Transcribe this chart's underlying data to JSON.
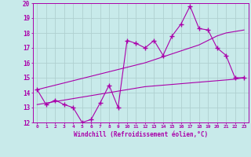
{
  "xlabel": "Windchill (Refroidissement éolien,°C)",
  "xlim": [
    -0.5,
    23.5
  ],
  "ylim": [
    12,
    20
  ],
  "background_color": "#c8eaea",
  "line_color": "#aa00aa",
  "grid_color": "#b0d0d0",
  "line1_x": [
    0,
    1,
    2,
    3,
    4,
    5,
    6,
    7,
    8,
    9,
    10,
    11,
    12,
    13,
    14,
    15,
    16,
    17,
    18,
    19,
    20,
    21,
    22,
    23
  ],
  "line1_y": [
    14.2,
    13.2,
    13.5,
    13.2,
    13.0,
    12.0,
    12.2,
    13.3,
    14.5,
    13.0,
    17.5,
    17.3,
    17.0,
    17.5,
    16.5,
    17.8,
    18.6,
    19.8,
    18.3,
    18.2,
    17.0,
    16.5,
    15.0,
    15.0
  ],
  "line2_x": [
    0,
    1,
    2,
    3,
    4,
    5,
    6,
    7,
    8,
    9,
    10,
    11,
    12,
    13,
    14,
    15,
    16,
    17,
    18,
    19,
    20,
    21,
    22,
    23
  ],
  "line2_y": [
    13.2,
    13.3,
    13.4,
    13.5,
    13.6,
    13.7,
    13.8,
    13.9,
    14.0,
    14.1,
    14.2,
    14.3,
    14.4,
    14.45,
    14.5,
    14.55,
    14.6,
    14.65,
    14.7,
    14.75,
    14.8,
    14.85,
    14.9,
    15.0
  ],
  "line3_x": [
    0,
    1,
    2,
    3,
    4,
    5,
    6,
    7,
    8,
    9,
    10,
    11,
    12,
    13,
    14,
    15,
    16,
    17,
    18,
    19,
    20,
    21,
    22,
    23
  ],
  "line3_y": [
    14.2,
    14.35,
    14.5,
    14.65,
    14.8,
    14.95,
    15.1,
    15.25,
    15.4,
    15.55,
    15.7,
    15.85,
    16.0,
    16.2,
    16.4,
    16.6,
    16.8,
    17.0,
    17.2,
    17.5,
    17.8,
    18.0,
    18.1,
    18.2
  ],
  "xtick_labels": [
    "0",
    "1",
    "2",
    "3",
    "4",
    "5",
    "6",
    "7",
    "8",
    "9",
    "10",
    "11",
    "12",
    "13",
    "14",
    "15",
    "16",
    "17",
    "18",
    "19",
    "20",
    "21",
    "22",
    "23"
  ],
  "ytick_labels": [
    "12",
    "13",
    "14",
    "15",
    "16",
    "17",
    "18",
    "19",
    "20"
  ]
}
